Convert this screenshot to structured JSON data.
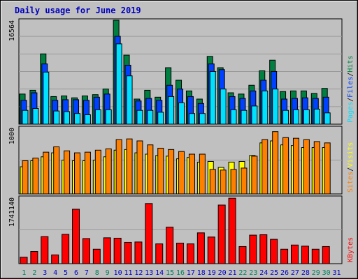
{
  "title": "Daily usage for June 2019",
  "colors": {
    "hits": "#008040",
    "files": "#0040ff",
    "pages": "#00e0ff",
    "visits": "#ffff00",
    "sites": "#ff8000",
    "kbytes": "#ff0000",
    "weekend_day": "#00805c",
    "weekday_day": "#0000c0",
    "slash": "#000000",
    "plot_bg": "#c0c0c0",
    "grid": "#000000"
  },
  "chart_data": [
    {
      "type": "bar",
      "panel": "hits",
      "ytick_top": "16564",
      "legend": [
        "Pages",
        "Files",
        "Hits"
      ],
      "categories": [
        "1",
        "2",
        "3",
        "4",
        "5",
        "6",
        "7",
        "8",
        "9",
        "10",
        "11",
        "12",
        "13",
        "14",
        "15",
        "16",
        "17",
        "18",
        "19",
        "20",
        "21",
        "22",
        "23",
        "24",
        "25",
        "26",
        "27",
        "28",
        "29",
        "30",
        "31"
      ],
      "ylim": [
        0,
        16564
      ],
      "series": [
        {
          "name": "Hits",
          "values": [
            4800,
            5400,
            11200,
            4400,
            4500,
            4200,
            4500,
            4700,
            5600,
            16564,
            11000,
            4000,
            5400,
            4300,
            9000,
            7000,
            5300,
            4000,
            10800,
            9000,
            5000,
            4800,
            6200,
            8500,
            10200,
            5200,
            5300,
            5300,
            4900,
            5700,
            0
          ]
        },
        {
          "name": "Files",
          "values": [
            3800,
            5000,
            9600,
            3800,
            3900,
            3900,
            3800,
            4300,
            4800,
            14000,
            9400,
            3700,
            4100,
            3800,
            6200,
            5600,
            4400,
            3300,
            9600,
            8700,
            4400,
            4100,
            5300,
            7000,
            8400,
            4000,
            4100,
            4200,
            4100,
            4300,
            0
          ]
        },
        {
          "name": "Pages",
          "values": [
            2200,
            2500,
            8300,
            2100,
            2000,
            1700,
            1500,
            2300,
            2300,
            12800,
            7700,
            2200,
            2200,
            1900,
            4400,
            3400,
            1700,
            1700,
            8400,
            5600,
            2300,
            2200,
            2900,
            5300,
            5600,
            2200,
            2300,
            2300,
            2400,
            1800,
            0
          ]
        }
      ]
    },
    {
      "type": "bar",
      "panel": "visits",
      "ytick_top": "1000",
      "legend": [
        "Sites",
        "Visits"
      ],
      "categories": [
        "1",
        "2",
        "3",
        "4",
        "5",
        "6",
        "7",
        "8",
        "9",
        "10",
        "11",
        "12",
        "13",
        "14",
        "15",
        "16",
        "17",
        "18",
        "19",
        "20",
        "21",
        "22",
        "23",
        "24",
        "25",
        "26",
        "27",
        "28",
        "29",
        "30",
        "31"
      ],
      "ylim": [
        0,
        1000
      ],
      "series": [
        {
          "name": "Visits",
          "values": [
            410,
            500,
            560,
            620,
            510,
            500,
            500,
            510,
            560,
            660,
            670,
            620,
            600,
            580,
            570,
            530,
            550,
            480,
            490,
            400,
            480,
            490,
            580,
            770,
            800,
            740,
            730,
            700,
            700,
            700,
            0
          ]
        },
        {
          "name": "Sites",
          "values": [
            500,
            540,
            630,
            710,
            650,
            620,
            630,
            660,
            680,
            820,
            830,
            800,
            740,
            690,
            670,
            640,
            600,
            600,
            370,
            360,
            370,
            390,
            570,
            820,
            940,
            850,
            840,
            820,
            790,
            770,
            0
          ]
        }
      ]
    },
    {
      "type": "bar",
      "panel": "kbytes",
      "ytick_top": "1741140",
      "legend": [
        "KBytes"
      ],
      "categories": [
        "1",
        "2",
        "3",
        "4",
        "5",
        "6",
        "7",
        "8",
        "9",
        "10",
        "11",
        "12",
        "13",
        "14",
        "15",
        "16",
        "17",
        "18",
        "19",
        "20",
        "21",
        "22",
        "23",
        "24",
        "25",
        "26",
        "27",
        "28",
        "29",
        "30",
        "31"
      ],
      "ylim": [
        0,
        1741140
      ],
      "series": [
        {
          "name": "KBytes",
          "values": [
            170000,
            320000,
            710000,
            230000,
            770000,
            1430000,
            660000,
            380000,
            680000,
            670000,
            560000,
            570000,
            1580000,
            520000,
            960000,
            540000,
            520000,
            810000,
            700000,
            1540000,
            1720000,
            450000,
            750000,
            760000,
            640000,
            380000,
            490000,
            460000,
            380000,
            450000,
            0
          ]
        }
      ]
    }
  ]
}
